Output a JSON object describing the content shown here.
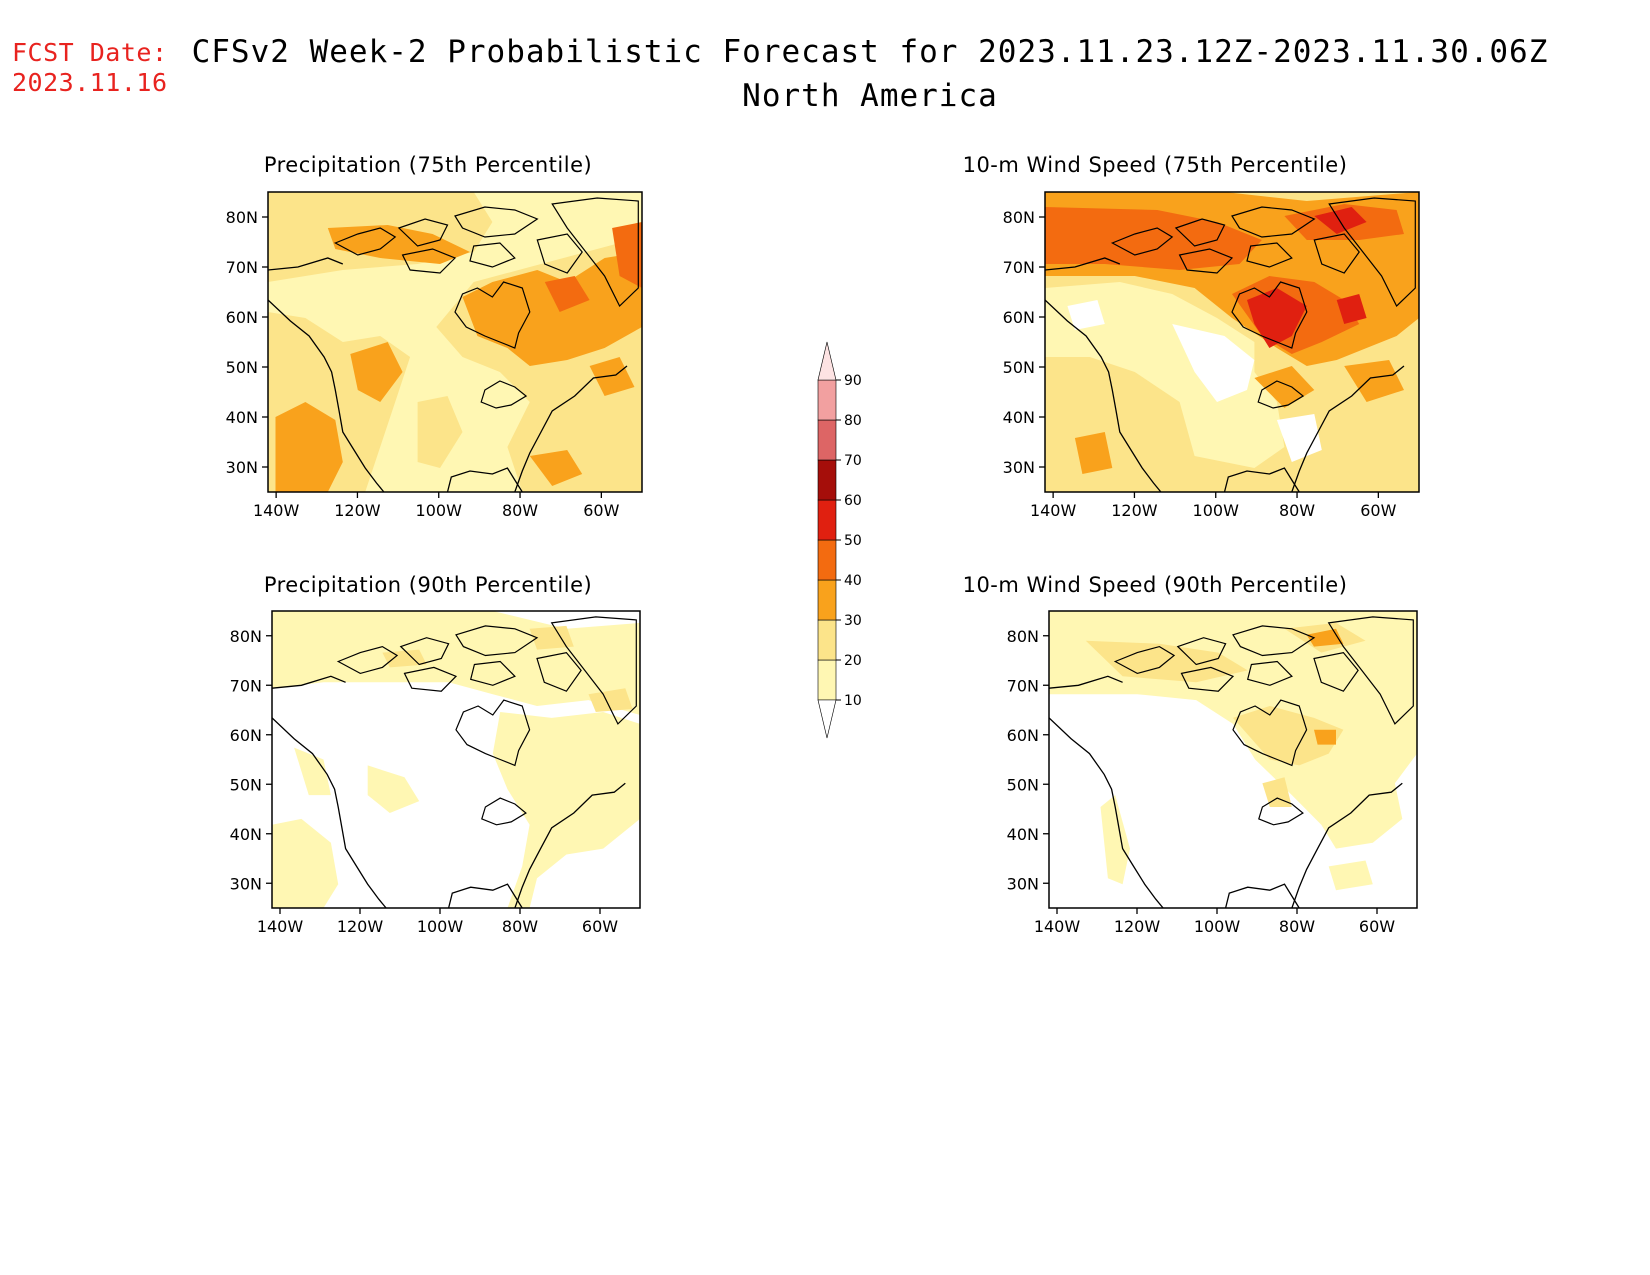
{
  "forecast_date": {
    "label": "FCST Date:",
    "value": "2023.11.16"
  },
  "title": {
    "line1": "CFSv2 Week-2 Probabilistic Forecast for 2023.11.23.12Z-2023.11.30.06Z",
    "line2": "North America"
  },
  "panels": [
    {
      "title": "Precipitation (75th Percentile)",
      "variable": "precipitation",
      "percentile": 75
    },
    {
      "title": "10-m Wind Speed (75th Percentile)",
      "variable": "wind_speed_10m",
      "percentile": 75
    },
    {
      "title": "Precipitation (90th Percentile)",
      "variable": "precipitation",
      "percentile": 90
    },
    {
      "title": "10-m Wind Speed (90th Percentile)",
      "variable": "wind_speed_10m",
      "percentile": 90
    }
  ],
  "map_axes": {
    "lat_labels": [
      "80N",
      "70N",
      "60N",
      "50N",
      "40N",
      "30N"
    ],
    "lon_labels": [
      "140W",
      "120W",
      "100W",
      "80W",
      "60W"
    ]
  },
  "colorbar": {
    "levels": [
      "10",
      "20",
      "30",
      "40",
      "50",
      "60",
      "70",
      "80",
      "90"
    ],
    "colors": [
      "#fff7b3",
      "#fce48a",
      "#f9a21c",
      "#f36b10",
      "#e02010",
      "#a50e0a",
      "#dd6565",
      "#f2a0a0",
      "#fde3e3"
    ]
  },
  "shading_colors": {
    "lt10": "#ffffff",
    "c10": "#fff7b3",
    "c20": "#fce48a",
    "c30": "#f9a21c",
    "c40": "#f36b10",
    "c50": "#e02010"
  }
}
